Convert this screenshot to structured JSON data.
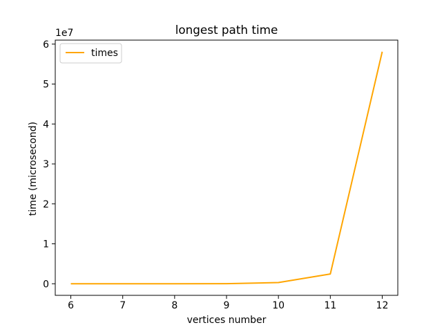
{
  "chart_data": {
    "type": "line",
    "title": "longest path time",
    "xlabel": "vertices number",
    "ylabel": "time (microsecond)",
    "y_offset_label": "1e7",
    "x": [
      6,
      7,
      8,
      9,
      10,
      11,
      12
    ],
    "series": [
      {
        "name": "times",
        "color": "#ffa500",
        "values": [
          2,
          30,
          800,
          12000,
          300000,
          2450000,
          58100000
        ]
      }
    ],
    "xlim": [
      5.7,
      12.3
    ],
    "ylim": [
      -2900000,
      61000000
    ],
    "x_ticks": [
      "6",
      "7",
      "8",
      "9",
      "10",
      "11",
      "12"
    ],
    "y_ticks": [
      "0",
      "1",
      "2",
      "3",
      "4",
      "5",
      "6"
    ],
    "y_tick_values": [
      0,
      10000000,
      20000000,
      30000000,
      40000000,
      50000000,
      60000000
    ],
    "grid": false,
    "legend": "upper-left"
  }
}
